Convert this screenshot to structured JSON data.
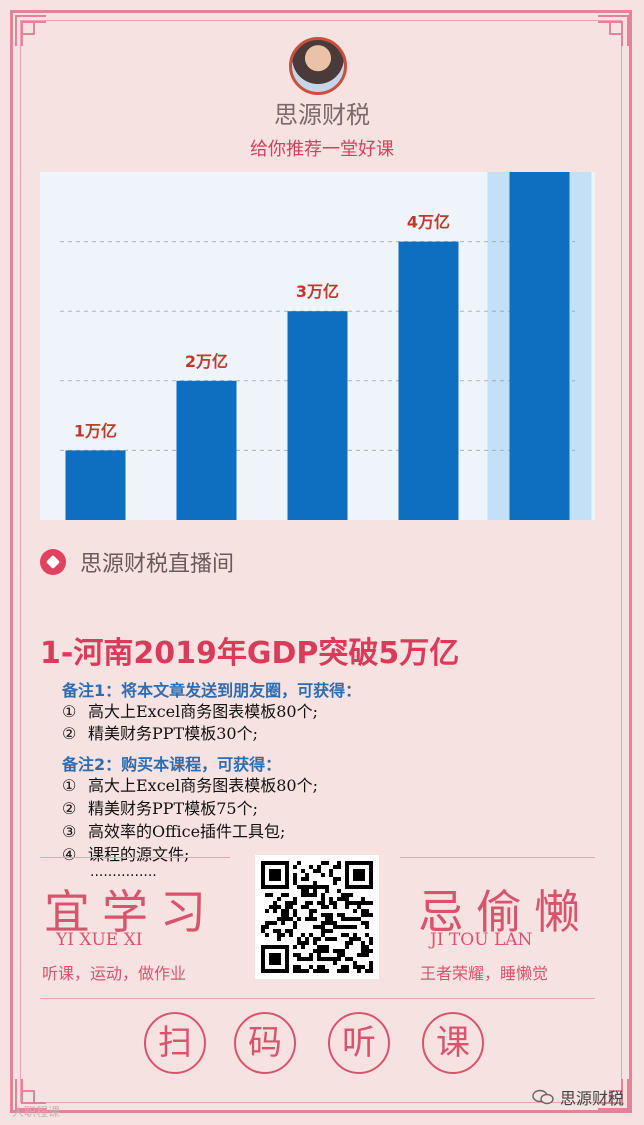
{
  "header": {
    "brand": "思源财税",
    "subtitle": "给你推荐一堂好课"
  },
  "chart_data": {
    "type": "bar",
    "categories": [
      "",
      "",
      "",
      "",
      ""
    ],
    "values": [
      1,
      2,
      3,
      4,
      5
    ],
    "data_labels": [
      "1万亿",
      "2万亿",
      "3万亿",
      "4万亿",
      ""
    ],
    "ylim": [
      0,
      5
    ],
    "grid": true,
    "colors": {
      "bar": "#0e6ebf",
      "highlight": "#c3e0f6",
      "label": "#c0392b",
      "grid": "#888888"
    },
    "title": "",
    "xlabel": "",
    "ylabel": ""
  },
  "live": {
    "label": "思源财税直播间"
  },
  "headline": "1-河南2019年GDP突破5万亿",
  "notes": [
    {
      "title": "备注1：将本文章发送到朋友圈，可获得：",
      "items": [
        {
          "num": "①",
          "text": "高大上Excel商务图表模板80个;"
        },
        {
          "num": "②",
          "text": "精美财务PPT模板30个;"
        }
      ]
    },
    {
      "title": "备注2：购买本课程，可获得：",
      "items": [
        {
          "num": "①",
          "text": "高大上Excel商务图表模板80个;"
        },
        {
          "num": "②",
          "text": "精美财务PPT模板75个;"
        },
        {
          "num": "③",
          "text": "高效率的Office插件工具包;"
        },
        {
          "num": "④",
          "text": "课程的源文件;"
        }
      ]
    }
  ],
  "dots": "...............",
  "left_panel": {
    "chars": "宜学习",
    "pinyin": "YI   XUE   XI",
    "desc": "听课，运动，做作业"
  },
  "right_panel": {
    "chars": "忌偷懒",
    "pinyin": "JI   TOU   LAN",
    "desc": "王者荣耀，睡懒觉"
  },
  "buttons": [
    "扫",
    "码",
    "听",
    "课"
  ],
  "footer": {
    "wechat": "思源财税",
    "watermark": "人职程课"
  }
}
